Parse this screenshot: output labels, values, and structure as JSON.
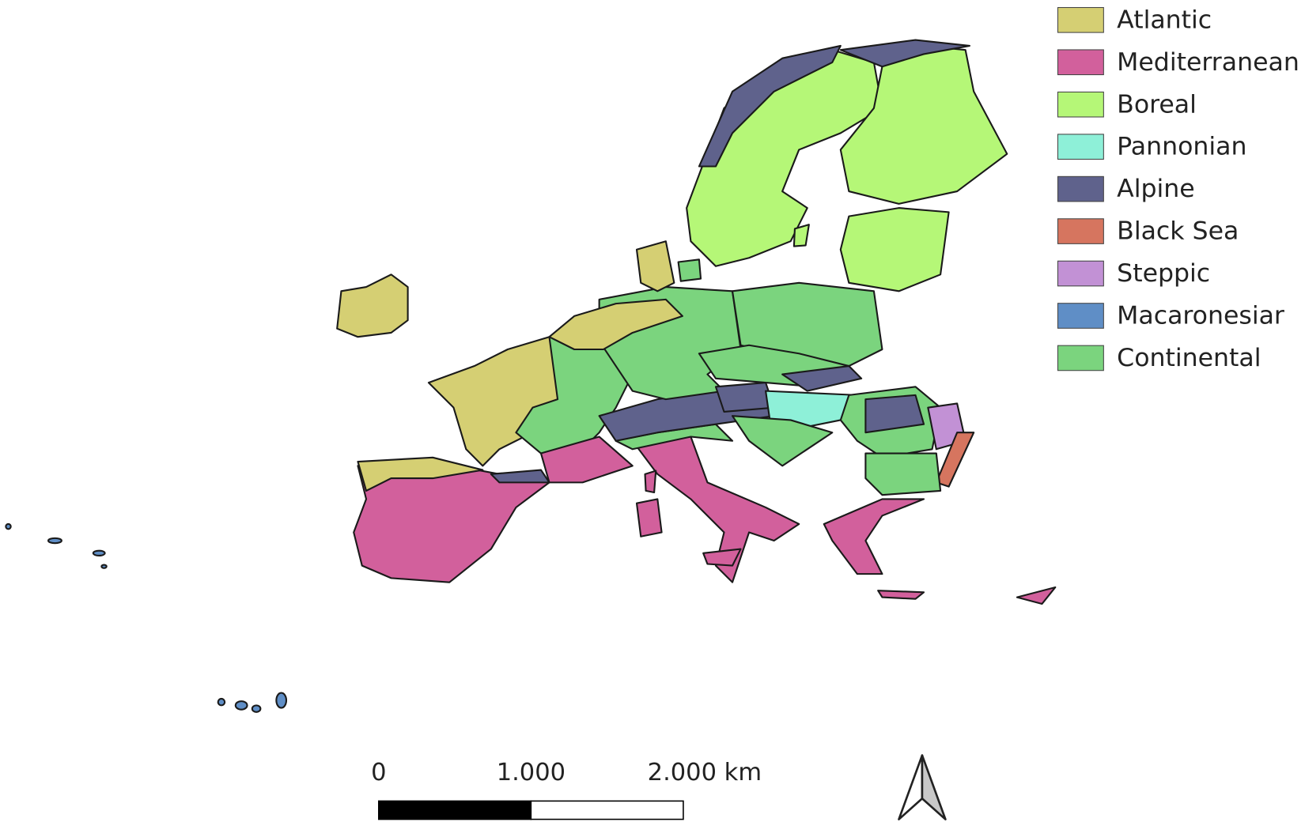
{
  "legend": {
    "items": [
      {
        "label": "Atlantic",
        "color": "#d5cf73"
      },
      {
        "label": "Mediterranean",
        "color": "#d2609c"
      },
      {
        "label": "Boreal",
        "color": "#b5f777"
      },
      {
        "label": "Pannonian",
        "color": "#8ef0d8"
      },
      {
        "label": "Alpine",
        "color": "#5f628c"
      },
      {
        "label": "Black Sea",
        "color": "#d6755f"
      },
      {
        "label": "Steppic",
        "color": "#c291d5"
      },
      {
        "label": "Macaronesiar",
        "color": "#5f8ec6"
      },
      {
        "label": "Continental",
        "color": "#7bd47e"
      }
    ]
  },
  "scale_bar": {
    "labels": [
      "0",
      "1.000",
      "2.000 km"
    ]
  }
}
